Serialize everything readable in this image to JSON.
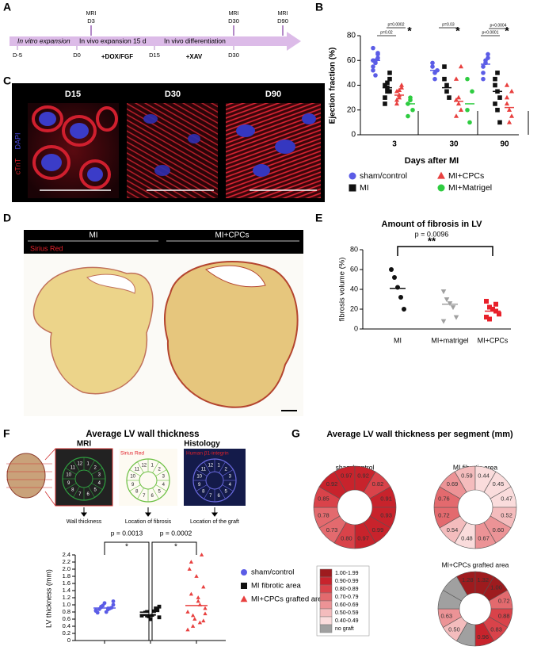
{
  "panels": {
    "A": {
      "label": "A",
      "phases": [
        "In vitro expansion",
        "In vivo expansion 15 d",
        "In vivo differentiation"
      ],
      "days": [
        "D-5",
        "D0",
        "D15",
        "D30"
      ],
      "treatments": [
        "+DOX/FGF",
        "+XAV"
      ],
      "mri": {
        "label": "MRI",
        "days": [
          "D3",
          "D30",
          "D90"
        ]
      }
    },
    "B": {
      "label": "B",
      "type": "scatter",
      "y_label": "Ejection fraction (%)",
      "x_label": "Days after MI",
      "categories": [
        "3",
        "30",
        "90"
      ],
      "ylim": [
        0,
        80
      ],
      "yticks": [
        0,
        20,
        40,
        60,
        80
      ],
      "annotations": [
        "p=0.02",
        "p=0.0002",
        "p=0.03",
        "p<0.0001",
        "p<0.0004"
      ],
      "star": "*",
      "series": [
        {
          "name": "sham/control",
          "color": "#5b5ce6",
          "marker": "circle",
          "values": [
            [
              55,
              60,
              65,
              70,
              58,
              62,
              52,
              48,
              66,
              60
            ],
            [
              55,
              50,
              52,
              58,
              45
            ],
            [
              55,
              60,
              65,
              50,
              58,
              62,
              45
            ]
          ],
          "means": [
            60,
            52,
            57
          ]
        },
        {
          "name": "MI",
          "color": "#111111",
          "marker": "square",
          "values": [
            [
              40,
              35,
              45,
              30,
              38,
              50,
              25,
              42,
              35
            ],
            [
              45,
              35,
              30,
              55,
              40
            ],
            [
              40,
              35,
              30,
              45,
              20,
              10,
              25,
              50
            ]
          ],
          "means": [
            38,
            38,
            35
          ]
        },
        {
          "name": "MI+CPCs",
          "color": "#e8403f",
          "marker": "triangle",
          "values": [
            [
              35,
              30,
              40,
              25,
              32,
              38,
              28,
              36
            ],
            [
              45,
              30,
              20,
              15,
              25,
              55,
              28
            ],
            [
              30,
              20,
              15,
              25,
              10,
              35,
              40
            ]
          ],
          "means": [
            32,
            27,
            22
          ]
        },
        {
          "name": "MI+Matrigel",
          "color": "#2ecc40",
          "marker": "circle",
          "values": [
            [
              25,
              28,
              20,
              15,
              30
            ],
            [
              20,
              10,
              35,
              45
            ],
            []
          ],
          "means": [
            25,
            25,
            null
          ]
        }
      ]
    },
    "C": {
      "label": "C",
      "titles": [
        "D15",
        "D30",
        "D90"
      ],
      "stain": [
        "cTnT",
        "DAPI"
      ]
    },
    "D": {
      "label": "D",
      "groups": [
        "MI",
        "MI+CPCs"
      ],
      "stain": "Sirius Red"
    },
    "E": {
      "label": "E",
      "type": "scatter",
      "title": "Amount of fibrosis in LV",
      "p": "p = 0.0096",
      "stars": "**",
      "y_label": "fibrosis volume (%)",
      "categories": [
        "MI",
        "MI+matrigel",
        "MI+CPCs"
      ],
      "colors": [
        "#111111",
        "#a0a0a0",
        "#e8202a"
      ],
      "markers": [
        "circle",
        "triangle-down",
        "square"
      ],
      "values": [
        [
          60,
          52,
          42,
          32,
          20
        ],
        [
          38,
          30,
          26,
          22,
          12,
          8
        ],
        [
          28,
          22,
          20,
          18,
          15,
          12,
          10,
          20,
          25
        ]
      ],
      "means": [
        41,
        25,
        18
      ],
      "ylim": [
        0,
        80
      ],
      "yticks": [
        0,
        20,
        40,
        60,
        80
      ]
    },
    "F": {
      "label": "F",
      "title": "Average LV wall thickness",
      "headers": [
        "MRI",
        "Histology"
      ],
      "stains": [
        "Sirius Red",
        "Human β1-integrin"
      ],
      "captions": [
        "Wall thickness",
        "Location of fibrosis",
        "Location of the graft"
      ],
      "segments": [
        "1",
        "2",
        "3",
        "4",
        "5",
        "6",
        "7",
        "8",
        "9",
        "10",
        "11",
        "12"
      ],
      "p": [
        "p = 0.0013",
        "p = 0.0002"
      ],
      "star": "*",
      "y_label": "LV thickness (mm)",
      "ylim": [
        0,
        2.4
      ],
      "yticks": [
        0,
        0.2,
        0.4,
        0.6,
        0.8,
        {
          "value": 1,
          "label": "1.0"
        },
        1.2,
        1.4,
        1.6,
        1.8,
        {
          "value": 2,
          "label": "2.0"
        },
        2.2,
        2.4
      ],
      "series": [
        {
          "name": "sham/control",
          "color": "#5b5ce6",
          "marker": "circle",
          "values": [
            0.85,
            0.9,
            0.95,
            1.0,
            0.8,
            0.88,
            0.92,
            1.05,
            0.78,
            0.9,
            0.98,
            0.83,
            0.87,
            0.93,
            1.1
          ],
          "mean": 0.91
        },
        {
          "name": "MI fibrotic area",
          "color": "#111111",
          "marker": "square",
          "values": [
            0.7,
            0.75,
            0.8,
            0.65,
            0.72,
            0.78,
            0.85,
            0.6,
            0.74,
            0.9,
            0.68,
            0.76,
            0.82,
            0.7,
            0.95
          ],
          "mean": 0.76
        },
        {
          "name": "MI+CPCs  grafted area",
          "color": "#e8403f",
          "marker": "triangle",
          "values": [
            0.3,
            0.5,
            0.7,
            0.9,
            1.1,
            1.3,
            1.5,
            1.8,
            2.0,
            2.4,
            0.6,
            0.8,
            1.0,
            0.4,
            0.75,
            1.2,
            2.2,
            0.55
          ],
          "mean": 0.98
        }
      ]
    },
    "G": {
      "label": "G",
      "title": "Average LV wall thickness per segment (mm)",
      "donuts": [
        {
          "title": "sham/control",
          "values": [
            0.97,
            0.92,
            0.82,
            0.91,
            0.93,
            0.99,
            0.97,
            0.8,
            0.73,
            0.78,
            0.85,
            0.92
          ],
          "value_labels": [
            "0.97",
            "0.92",
            "0.82",
            "0.91",
            "0.93",
            "0.99",
            "0.97",
            "0.80",
            "0.73",
            "0.78",
            "0.85",
            "0.92"
          ]
        },
        {
          "title": "MI fibrotic area",
          "values": [
            0.59,
            0.44,
            0.45,
            0.47,
            0.52,
            0.6,
            0.67,
            0.48,
            0.54,
            0.72,
            0.76,
            0.69
          ],
          "value_labels": [
            "0.59",
            "0.44",
            "0.45",
            "0.47",
            "0.52",
            "0.60",
            "0.67",
            "0.48",
            "0.54",
            "0.72",
            "0.76",
            "0.69"
          ]
        },
        {
          "title": "MI+CPCs grafted area",
          "values": [
            1.28,
            1.32,
            1.0,
            0.72,
            0.88,
            0.83,
            0.96,
            null,
            0.5,
            0.63,
            null,
            null
          ],
          "value_labels": [
            "1.28",
            "1.32",
            "1.00",
            "0.72",
            "0.88",
            "0.83",
            "0.96",
            null,
            "0.50",
            "0.63",
            null,
            null
          ]
        }
      ],
      "legend": [
        {
          "label": "1.00-1.99",
          "color": "#9e1b1e"
        },
        {
          "label": "0.90-0.99",
          "color": "#c8232c"
        },
        {
          "label": "0.80-0.89",
          "color": "#d9434a"
        },
        {
          "label": "0.70-0.79",
          "color": "#e36a6e"
        },
        {
          "label": "0.60-0.69",
          "color": "#ec9396"
        },
        {
          "label": "0.50-0.59",
          "color": "#f4bcbd"
        },
        {
          "label": "0.40-0.49",
          "color": "#fadcdc"
        },
        {
          "label": "no graft",
          "color": "#a0a0a0"
        }
      ]
    }
  }
}
